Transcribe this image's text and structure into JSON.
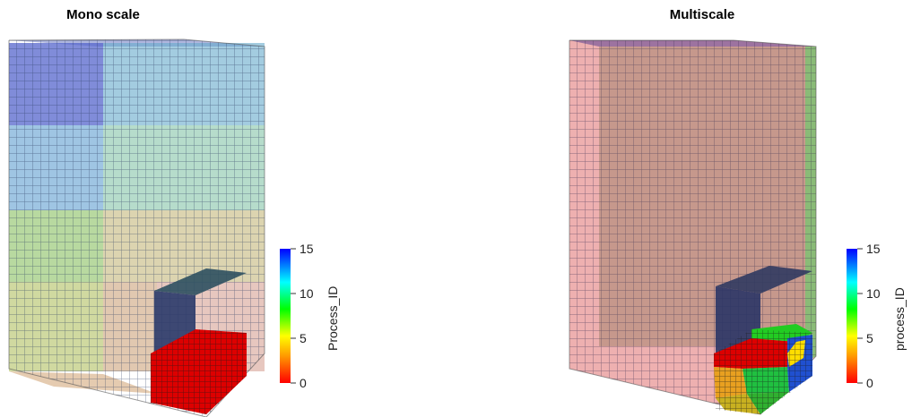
{
  "panels": [
    {
      "title": "Mono scale",
      "colorbar": {
        "title": "Process_ID",
        "ticks": [
          "15",
          "10",
          "5",
          "0"
        ]
      }
    },
    {
      "title": "Multiscale",
      "colorbar": {
        "title": "process_ID",
        "ticks": [
          "15",
          "10",
          "5",
          "0"
        ]
      }
    }
  ]
}
